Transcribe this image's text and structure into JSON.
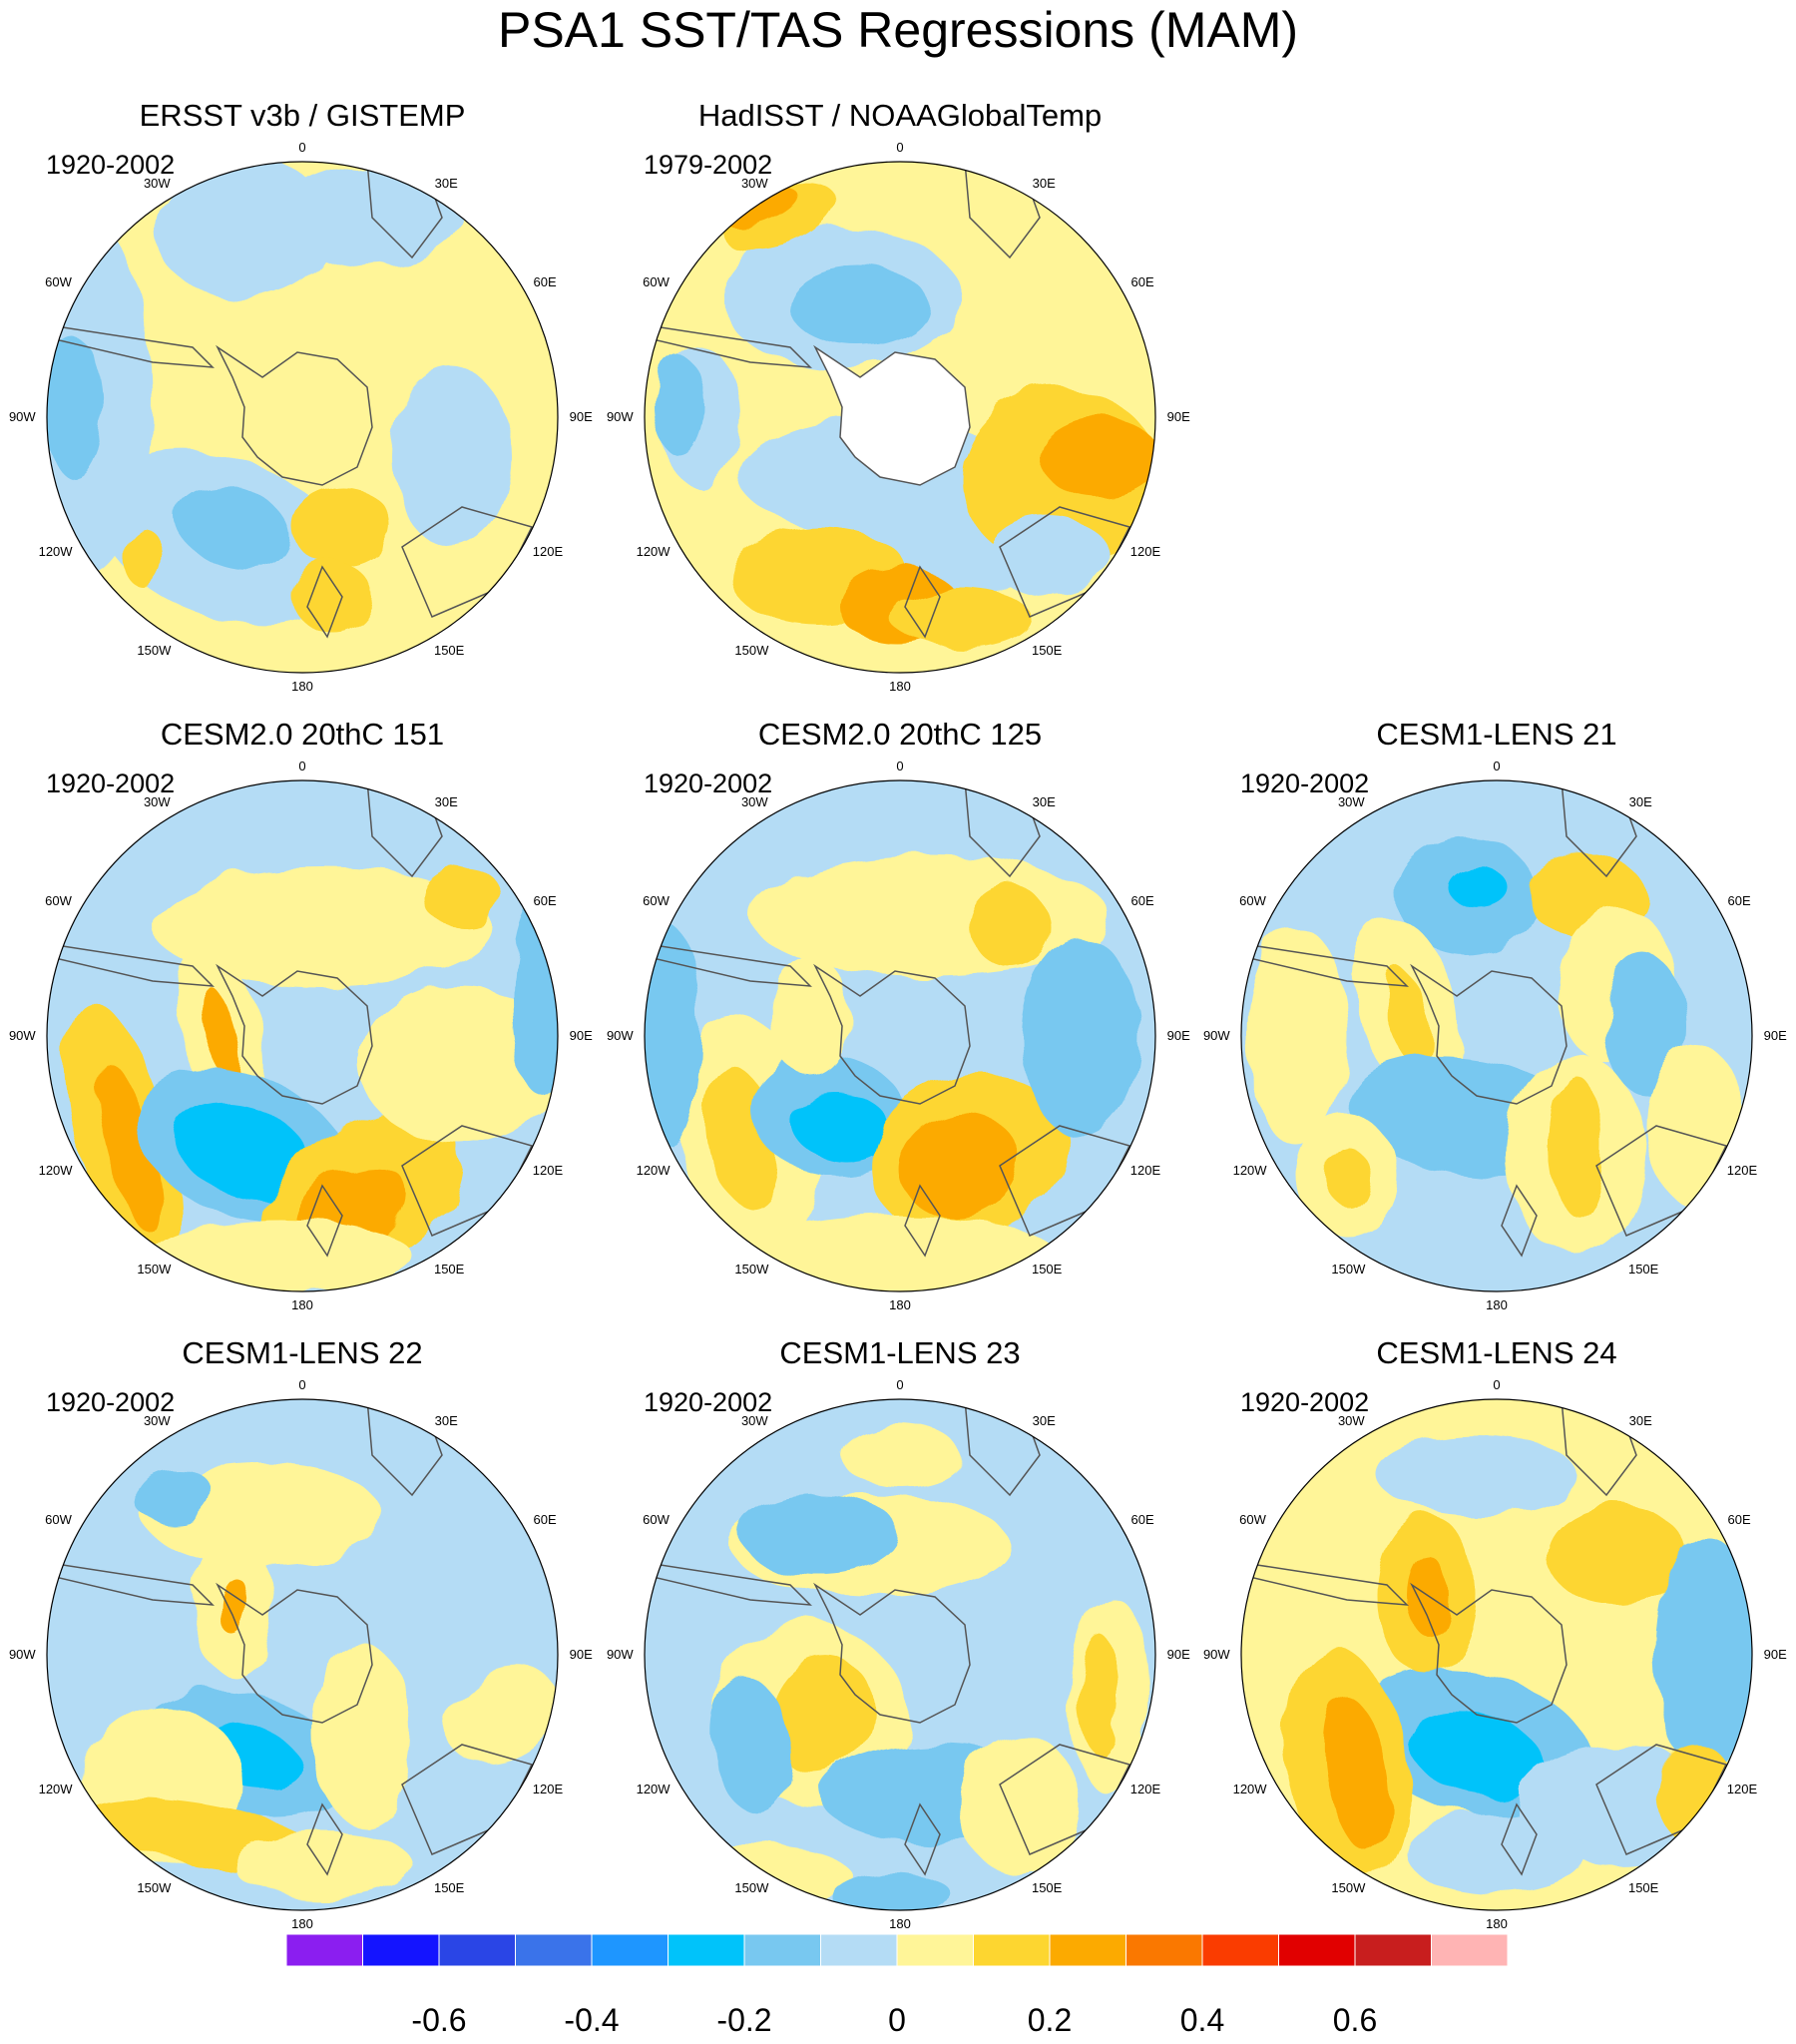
{
  "title": "PSA1 SST/TAS Regressions (MAM)",
  "lon_labels": [
    "0",
    "30E",
    "60E",
    "90E",
    "120E",
    "150E",
    "180",
    "150W",
    "120W",
    "90W",
    "60W",
    "30W"
  ],
  "panels": [
    {
      "id": "ersst",
      "title": "ERSST v3b / GISTEMP",
      "period": "1920-2002",
      "row": 0,
      "col": 0
    },
    {
      "id": "hadisst",
      "title": "HadISST / NOAAGlobalTemp",
      "period": "1979-2002",
      "row": 0,
      "col": 1
    },
    {
      "id": "cesm2-151",
      "title": "CESM2.0 20thC 151",
      "period": "1920-2002",
      "row": 1,
      "col": 0
    },
    {
      "id": "cesm2-125",
      "title": "CESM2.0 20thC 125",
      "period": "1920-2002",
      "row": 1,
      "col": 1
    },
    {
      "id": "lens21",
      "title": "CESM1-LENS 21",
      "period": "1920-2002",
      "row": 1,
      "col": 2
    },
    {
      "id": "lens22",
      "title": "CESM1-LENS 22",
      "period": "1920-2002",
      "row": 2,
      "col": 0
    },
    {
      "id": "lens23",
      "title": "CESM1-LENS 23",
      "period": "1920-2002",
      "row": 2,
      "col": 1
    },
    {
      "id": "lens24",
      "title": "CESM1-LENS 24",
      "period": "1920-2002",
      "row": 2,
      "col": 2
    }
  ],
  "colorbar": {
    "colors": [
      "#8b1ef0",
      "#1414ff",
      "#2a45e6",
      "#3a73ea",
      "#1e96ff",
      "#00c3fa",
      "#78c8f0",
      "#b4dcf5",
      "#fff598",
      "#fdd630",
      "#fcaa00",
      "#fa7800",
      "#fa3c00",
      "#e10000",
      "#c81e1e",
      "#ffb4b4"
    ],
    "labels": [
      "-0.6",
      "-0.4",
      "-0.2",
      "0",
      "0.2",
      "0.4",
      "0.6"
    ]
  }
}
